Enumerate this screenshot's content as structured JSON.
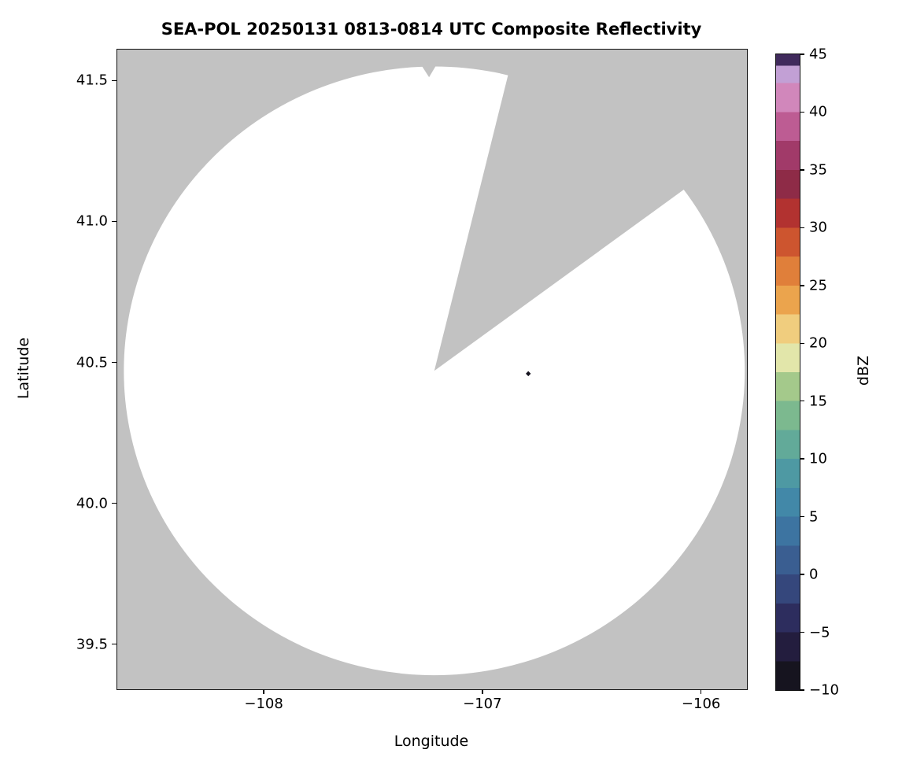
{
  "chart_data": {
    "type": "heatmap",
    "title": "SEA-POL 20250131 0813-0814 UTC Composite Reflectivity",
    "xlabel": "Longitude",
    "ylabel": "Latitude",
    "xlim": [
      -108.67,
      -105.79
    ],
    "ylim": [
      39.34,
      41.61
    ],
    "grid": false,
    "no_data_color": "#c2c2c2",
    "xticks": {
      "values": [
        -108,
        -107,
        -106
      ],
      "labels": [
        "−108",
        "−107",
        "−106"
      ]
    },
    "yticks": {
      "values": [
        41.5,
        41.0,
        40.5,
        40.0,
        39.5
      ],
      "labels": [
        "41.5",
        "41.0",
        "40.5",
        "40.0",
        "39.5"
      ]
    },
    "radar": {
      "center_lon": -107.22,
      "center_lat": 40.47,
      "radius_lon_deg": 1.42,
      "radius_lat_deg": 1.08,
      "coverage_color": "#ffffff",
      "blocked_sector_azimuth_deg": [
        14,
        54
      ],
      "rim_notch": {
        "azimuth_deg": -1,
        "half_width_deg": 1.7,
        "outer_frac": 1.015,
        "inner_frac": 0.965
      }
    },
    "echoes": [
      {
        "lon": -106.79,
        "lat": 40.46,
        "dbz": -8
      }
    ],
    "colorbar": {
      "label": "dBZ",
      "min": -10,
      "max": 45,
      "ticks": {
        "values": [
          -10,
          -5,
          0,
          5,
          10,
          15,
          20,
          25,
          30,
          35,
          40,
          45
        ],
        "labels": [
          "−10",
          "−5",
          "0",
          "5",
          "10",
          "15",
          "20",
          "25",
          "30",
          "35",
          "40",
          "45"
        ]
      },
      "segments": [
        {
          "from": -10,
          "to": -7.5,
          "color": "#16141f"
        },
        {
          "from": -7.5,
          "to": -5,
          "color": "#231d3e"
        },
        {
          "from": -5,
          "to": -2.5,
          "color": "#2d2d5e"
        },
        {
          "from": -2.5,
          "to": 0,
          "color": "#35477c"
        },
        {
          "from": 0,
          "to": 2.5,
          "color": "#3a5e91"
        },
        {
          "from": 2.5,
          "to": 5,
          "color": "#3d74a1"
        },
        {
          "from": 5,
          "to": 7.5,
          "color": "#4288a8"
        },
        {
          "from": 7.5,
          "to": 10,
          "color": "#4e99a3"
        },
        {
          "from": 10,
          "to": 12.5,
          "color": "#62aa99"
        },
        {
          "from": 12.5,
          "to": 15,
          "color": "#7cb98f"
        },
        {
          "from": 15,
          "to": 17.5,
          "color": "#a4c98b"
        },
        {
          "from": 17.5,
          "to": 20,
          "color": "#e2e6aa"
        },
        {
          "from": 20,
          "to": 22.5,
          "color": "#f0cd7e"
        },
        {
          "from": 22.5,
          "to": 25,
          "color": "#eba44d"
        },
        {
          "from": 25,
          "to": 27.5,
          "color": "#e07f3a"
        },
        {
          "from": 27.5,
          "to": 30,
          "color": "#cd552f"
        },
        {
          "from": 30,
          "to": 32.5,
          "color": "#b23230"
        },
        {
          "from": 32.5,
          "to": 35,
          "color": "#8e2b47"
        },
        {
          "from": 35,
          "to": 37.5,
          "color": "#a13a69"
        },
        {
          "from": 37.5,
          "to": 40,
          "color": "#bd5c93"
        },
        {
          "from": 40,
          "to": 42.5,
          "color": "#d187bb"
        },
        {
          "from": 42.5,
          "to": 44,
          "color": "#c2a0d5"
        },
        {
          "from": 44,
          "to": 45,
          "color": "#402a5c"
        }
      ]
    }
  }
}
